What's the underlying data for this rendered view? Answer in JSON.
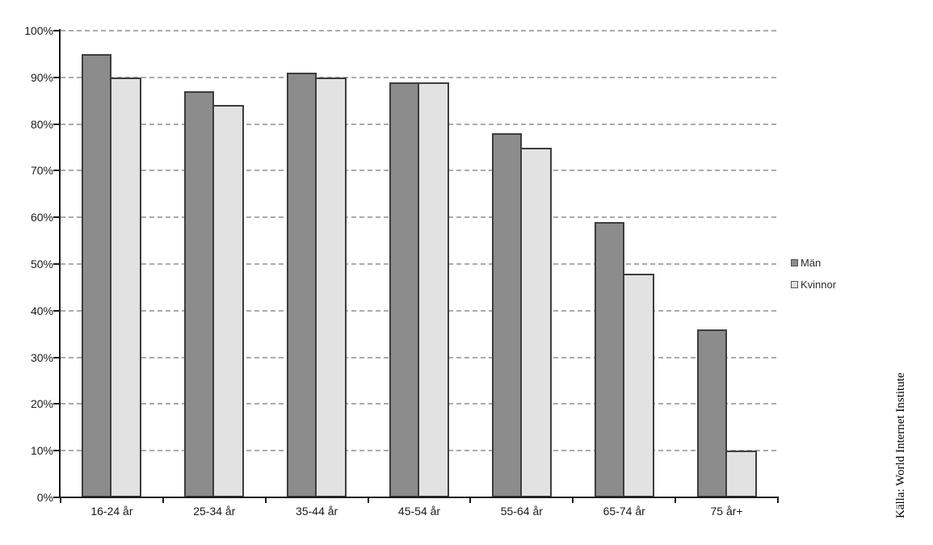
{
  "chart_data": {
    "type": "bar",
    "title": "",
    "categories": [
      "16-24 år",
      "25-34 år",
      "35-44 år",
      "45-54 år",
      "55-64 år",
      "65-74 år",
      "75 år+"
    ],
    "series": [
      {
        "name": "Män",
        "color": "#8c8c8c",
        "border_color": "#3d3d3d",
        "values": [
          95,
          87,
          91,
          89,
          78,
          59,
          36
        ]
      },
      {
        "name": "Kvinnor",
        "color": "#e2e2e2",
        "border_color": "#3d3d3d",
        "values": [
          90,
          84,
          90,
          89,
          75,
          48,
          10
        ]
      }
    ],
    "xlabel": "",
    "ylabel": "",
    "ylim": [
      0,
      100
    ],
    "ytick_step": 10,
    "ytick_labels": [
      "0%",
      "10%",
      "20%",
      "30%",
      "40%",
      "50%",
      "60%",
      "70%",
      "80%",
      "90%",
      "100%"
    ],
    "grid": "horizontal-dashed",
    "legend_position": "right-middle"
  },
  "source_note": "Källa: World Internet Institute",
  "colors": {
    "grid": "#ababab",
    "axis": "#1a1a1a",
    "text": "#1a1a1a",
    "background": "#ffffff"
  }
}
